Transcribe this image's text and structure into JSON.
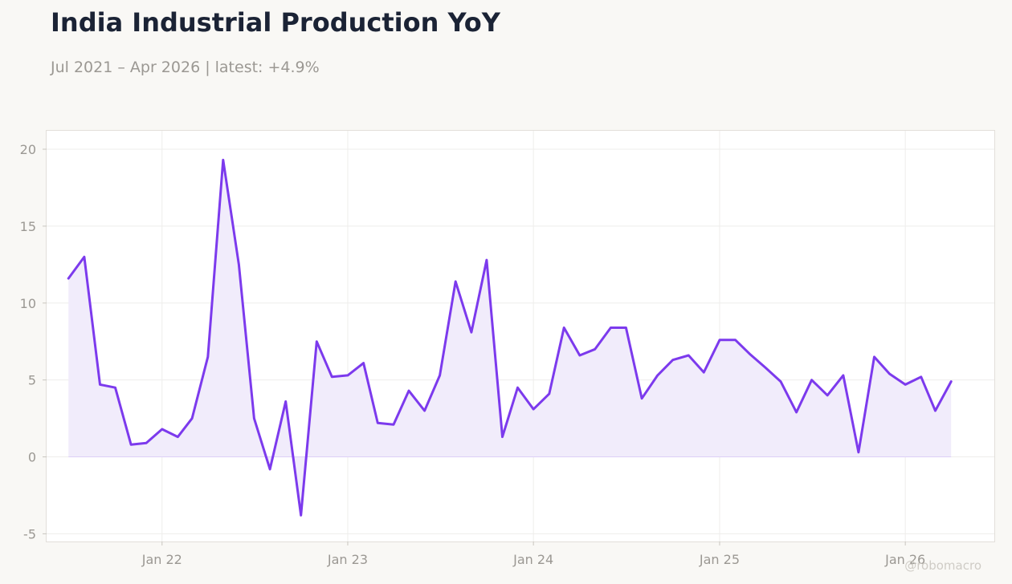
{
  "header": {
    "title": "India Industrial Production YoY",
    "subtitle": "Jul 2021 – Apr 2026 | latest: +4.9%"
  },
  "watermark": "@robomacro",
  "colors": {
    "line": "#7c3aed",
    "area": "#f1ecfb",
    "background": "#f9f8f5",
    "plot_background": "#ffffff",
    "grid": "#eeedeb"
  },
  "chart_data": {
    "type": "area",
    "title": "India Industrial Production YoY",
    "xlabel": "",
    "ylabel": "",
    "ylim": [
      -5.5,
      21.2
    ],
    "xlim": [
      "2021-05-19",
      "2026-06-25"
    ],
    "grid": true,
    "legend": "none",
    "yticks": [
      -5,
      0,
      5,
      10,
      15,
      20
    ],
    "ytick_labels": [
      "-5",
      "0",
      "5",
      "10",
      "15",
      "20"
    ],
    "xticks": [
      "2022-01-01",
      "2023-01-01",
      "2024-01-01",
      "2025-01-01",
      "2026-01-01"
    ],
    "xtick_labels": [
      "Jan 22",
      "Jan 23",
      "Jan 24",
      "Jan 25",
      "Jan 26"
    ],
    "series": [
      {
        "x": [
          "2021-07-01",
          "2021-08-01",
          "2021-09-01",
          "2021-10-01",
          "2021-11-01",
          "2021-12-01",
          "2022-01-01",
          "2022-02-01",
          "2022-03-01",
          "2022-04-01",
          "2022-05-01",
          "2022-06-01",
          "2022-07-01",
          "2022-08-01",
          "2022-09-01",
          "2022-10-01",
          "2022-11-01",
          "2022-12-01",
          "2023-01-01",
          "2023-02-01",
          "2023-03-01",
          "2023-04-01",
          "2023-05-01",
          "2023-06-01",
          "2023-07-01",
          "2023-08-01",
          "2023-09-01",
          "2023-10-01",
          "2023-11-01",
          "2023-12-01",
          "2024-01-01",
          "2024-02-01",
          "2024-03-01",
          "2024-04-01",
          "2024-05-01",
          "2024-06-01",
          "2024-07-01",
          "2024-08-01",
          "2024-09-01",
          "2024-10-01",
          "2024-11-01",
          "2024-12-01",
          "2025-01-01",
          "2025-02-01",
          "2025-03-01",
          "2025-04-01",
          "2025-05-01",
          "2025-06-01",
          "2025-07-01",
          "2025-08-01",
          "2025-09-01",
          "2025-10-01",
          "2025-11-01",
          "2025-12-01",
          "2026-01-01",
          "2026-02-01",
          "2026-03-01",
          "2026-04-01"
        ],
        "values": [
          11.6,
          13.0,
          4.7,
          4.5,
          0.8,
          0.9,
          1.8,
          1.3,
          2.5,
          6.5,
          19.3,
          12.5,
          2.5,
          -0.8,
          3.6,
          -3.8,
          7.5,
          5.2,
          5.3,
          6.1,
          2.2,
          2.1,
          4.3,
          3.0,
          5.3,
          11.4,
          8.1,
          12.8,
          1.3,
          4.5,
          3.1,
          4.1,
          8.4,
          6.6,
          7.0,
          8.4,
          8.4,
          3.8,
          5.3,
          6.3,
          6.6,
          5.5,
          7.6,
          7.6,
          6.7,
          5.8,
          4.9,
          2.9,
          5.0,
          4.0,
          5.3,
          0.3,
          6.5,
          5.4,
          4.7,
          5.2,
          3.0,
          4.9
        ]
      }
    ]
  }
}
